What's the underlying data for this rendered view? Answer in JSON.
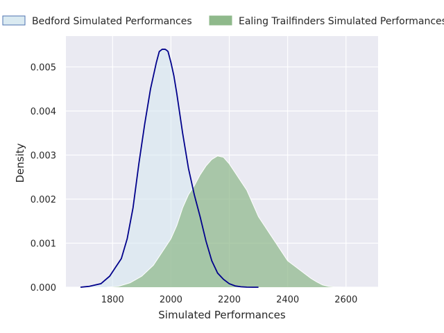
{
  "chart_data": {
    "type": "area",
    "title": "",
    "xlabel": "Simulated Performances",
    "ylabel": "Density",
    "xlim": [
      1640,
      2710
    ],
    "ylim": [
      0,
      0.0057
    ],
    "x_ticks": [
      1800,
      2000,
      2200,
      2400,
      2600
    ],
    "y_ticks": [
      0.0,
      0.001,
      0.002,
      0.003,
      0.004,
      0.005
    ],
    "y_tick_labels": [
      "0.000",
      "0.001",
      "0.002",
      "0.003",
      "0.004",
      "0.005"
    ],
    "grid": true,
    "legend_position": "top",
    "series": [
      {
        "name": "Bedford Simulated Performances",
        "fill_color": "#d6e8f0",
        "line_color": "#00008b",
        "x": [
          1690,
          1720,
          1760,
          1790,
          1810,
          1830,
          1850,
          1870,
          1890,
          1910,
          1930,
          1950,
          1960,
          1970,
          1980,
          1985,
          1990,
          2000,
          2010,
          2020,
          2040,
          2060,
          2080,
          2100,
          2120,
          2140,
          2160,
          2180,
          2200,
          2220,
          2240,
          2260,
          2280,
          2300
        ],
        "y": [
          0.0,
          2e-05,
          8e-05,
          0.00025,
          0.00045,
          0.00065,
          0.0011,
          0.0018,
          0.0028,
          0.0037,
          0.0045,
          0.0051,
          0.00535,
          0.0054,
          0.0054,
          0.00538,
          0.00535,
          0.0051,
          0.0048,
          0.0044,
          0.0035,
          0.0027,
          0.0021,
          0.0016,
          0.00105,
          0.0006,
          0.00032,
          0.00018,
          8e-05,
          3e-05,
          1e-05,
          2e-06,
          0.0,
          0.0
        ]
      },
      {
        "name": "Ealing Trailfinders Simulated Performances",
        "fill_color": "#8fb98b",
        "line_color": "#ffffff",
        "x": [
          1780,
          1820,
          1860,
          1900,
          1940,
          1960,
          1980,
          2000,
          2020,
          2040,
          2060,
          2080,
          2100,
          2120,
          2140,
          2160,
          2180,
          2200,
          2220,
          2240,
          2260,
          2280,
          2300,
          2320,
          2340,
          2360,
          2380,
          2400,
          2420,
          2440,
          2460,
          2480,
          2500,
          2520,
          2540,
          2560,
          2600,
          2650,
          2690
        ],
        "y": [
          0.0,
          2e-05,
          0.0001,
          0.00025,
          0.0005,
          0.0007,
          0.0009,
          0.0011,
          0.0014,
          0.0018,
          0.0021,
          0.0023,
          0.00255,
          0.00275,
          0.0029,
          0.00298,
          0.00295,
          0.0028,
          0.0026,
          0.0024,
          0.0022,
          0.0019,
          0.0016,
          0.0014,
          0.0012,
          0.001,
          0.0008,
          0.0006,
          0.0005,
          0.0004,
          0.0003,
          0.0002,
          0.00012,
          5e-05,
          2e-05,
          5e-06,
          0.0,
          0.0,
          0.0
        ]
      }
    ]
  }
}
